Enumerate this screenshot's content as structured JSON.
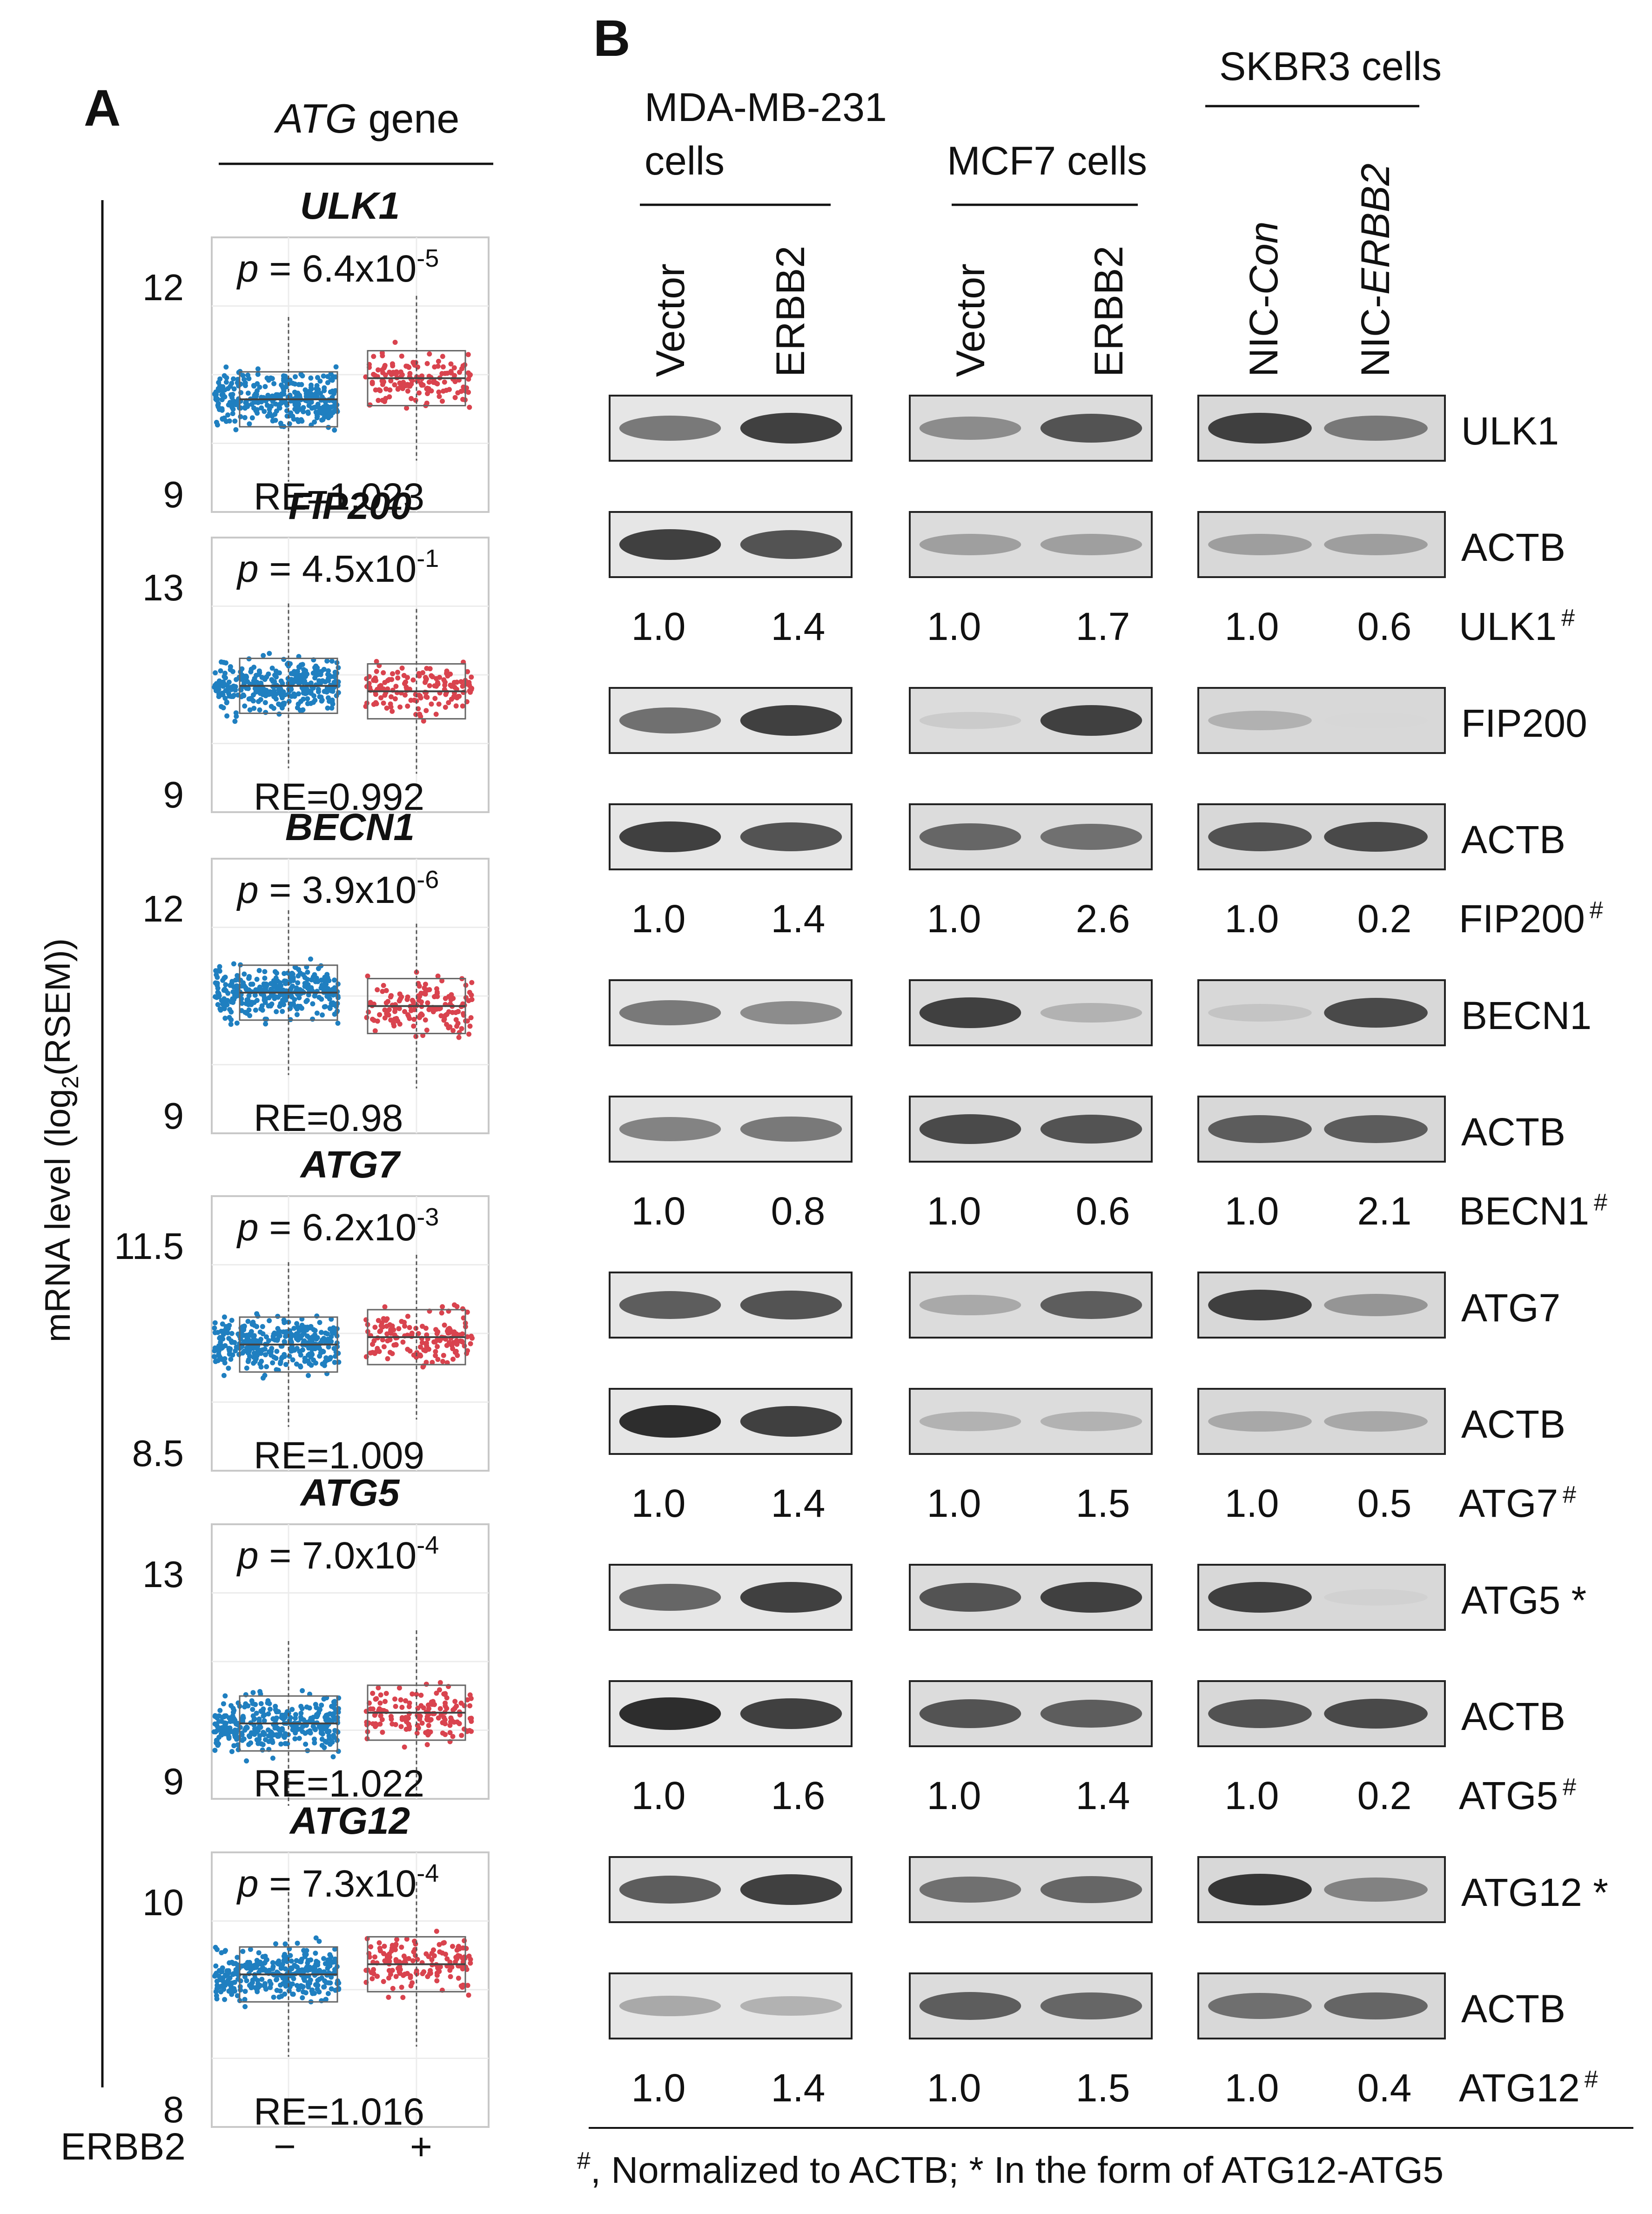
{
  "panels": {
    "a_label": "A",
    "b_label": "B"
  },
  "panel_a": {
    "header_italic": "ATG",
    "header_rest": " gene",
    "y_axis_label_pre": "mRNA level (log",
    "y_axis_label_sub": "2",
    "y_axis_label_post": "(RSEM))",
    "x_label": "ERBB2",
    "x_minus": "−",
    "x_plus": "+",
    "colors": {
      "negative": "#1f7fc0",
      "positive": "#d9434e"
    },
    "plots": [
      {
        "gene": "ULK1",
        "tick_top": "12",
        "tick_bottom": "9",
        "p_pre": "p = 6.4x10",
        "p_exp": "-5",
        "re": "RE=1.023",
        "median_neg": 10.3,
        "median_pos": 10.6,
        "ylim": [
          8.7,
          12.6
        ]
      },
      {
        "gene": "FIP200",
        "tick_top": "13",
        "tick_bottom": "9",
        "p_pre": "p = 4.5x10",
        "p_exp": "-1",
        "re": "RE=0.992",
        "median_neg": 10.9,
        "median_pos": 10.8,
        "ylim": [
          8.6,
          13.6
        ]
      },
      {
        "gene": "BECN1",
        "tick_top": "12",
        "tick_bottom": "9",
        "p_pre": "p = 3.9x10",
        "p_exp": "-6",
        "re": "RE=0.98",
        "median_neg": 10.7,
        "median_pos": 10.5,
        "ylim": [
          8.6,
          12.7
        ]
      },
      {
        "gene": "ATG7",
        "tick_top": "11.5",
        "tick_bottom": "8.5",
        "p_pre": "p = 6.2x10",
        "p_exp": "-3",
        "re": "RE=1.009",
        "median_neg": 9.9,
        "median_pos": 10.0,
        "ylim": [
          8.2,
          11.9
        ]
      },
      {
        "gene": "ATG5",
        "tick_top": "13",
        "tick_bottom": "9",
        "p_pre": "p = 7.0x10",
        "p_exp": "-4",
        "re": "RE=1.022",
        "median_neg": 9.9,
        "median_pos": 10.1,
        "ylim": [
          8.5,
          13.6
        ]
      },
      {
        "gene": "ATG12",
        "tick_top": "10",
        "tick_bottom": "8",
        "p_pre": "p = 7.3x10",
        "p_exp": "-4",
        "re": "RE=1.016",
        "median_neg": 9.3,
        "median_pos": 9.4,
        "ylim": [
          7.8,
          10.5
        ]
      }
    ]
  },
  "panel_b": {
    "groups": [
      {
        "title_line1": "MDA-MB-231",
        "title_line2": "cells",
        "lanes": [
          {
            "label": "Vector",
            "italic": ""
          },
          {
            "label": "ERBB2",
            "italic": ""
          }
        ]
      },
      {
        "title_line1": "MCF7 cells",
        "title_line2": "",
        "lanes": [
          {
            "label": "Vector",
            "italic": ""
          },
          {
            "label": "ERBB2",
            "italic": ""
          }
        ]
      },
      {
        "title_line1": "SKBR3 cells",
        "title_line2": "",
        "lanes": [
          {
            "label": "NIC-",
            "italic": "Con"
          },
          {
            "label": "NIC-",
            "italic": "ERBB2"
          }
        ]
      }
    ],
    "blots": [
      {
        "target": "ULK1",
        "suffix": "",
        "loading": "ACTB",
        "quant_label": "ULK1",
        "quant": [
          [
            "1.0",
            "1.4"
          ],
          [
            "1.0",
            "1.7"
          ],
          [
            "1.0",
            "0.6"
          ]
        ],
        "target_bands": [
          [
            0.55,
            0.85
          ],
          [
            0.45,
            0.75
          ],
          [
            0.85,
            0.55
          ]
        ],
        "actb_bands": [
          [
            0.85,
            0.75
          ],
          [
            0.35,
            0.35
          ],
          [
            0.35,
            0.35
          ]
        ]
      },
      {
        "target": "FIP200",
        "suffix": "",
        "loading": "ACTB",
        "quant_label": "FIP200",
        "quant": [
          [
            "1.0",
            "1.4"
          ],
          [
            "1.0",
            "2.6"
          ],
          [
            "1.0",
            "0.2"
          ]
        ],
        "target_bands": [
          [
            0.6,
            0.85
          ],
          [
            0.12,
            0.85
          ],
          [
            0.25,
            0.05
          ]
        ],
        "actb_bands": [
          [
            0.85,
            0.75
          ],
          [
            0.65,
            0.6
          ],
          [
            0.75,
            0.8
          ]
        ]
      },
      {
        "target": "BECN1",
        "suffix": "",
        "loading": "ACTB",
        "quant_label": "BECN1",
        "quant": [
          [
            "1.0",
            "0.8"
          ],
          [
            "1.0",
            "0.6"
          ],
          [
            "1.0",
            "2.1"
          ]
        ],
        "target_bands": [
          [
            0.55,
            0.45
          ],
          [
            0.85,
            0.25
          ],
          [
            0.15,
            0.8
          ]
        ],
        "actb_bands": [
          [
            0.5,
            0.55
          ],
          [
            0.8,
            0.75
          ],
          [
            0.7,
            0.7
          ]
        ]
      },
      {
        "target": "ATG7",
        "suffix": "",
        "loading": "ACTB",
        "quant_label": "ATG7",
        "quant": [
          [
            "1.0",
            "1.4"
          ],
          [
            "1.0",
            "1.5"
          ],
          [
            "1.0",
            "0.5"
          ]
        ],
        "target_bands": [
          [
            0.7,
            0.75
          ],
          [
            0.3,
            0.7
          ],
          [
            0.85,
            0.4
          ]
        ],
        "actb_bands": [
          [
            0.95,
            0.85
          ],
          [
            0.25,
            0.25
          ],
          [
            0.3,
            0.3
          ]
        ]
      },
      {
        "target": "ATG5",
        "suffix": " *",
        "loading": "ACTB",
        "quant_label": "ATG5",
        "quant": [
          [
            "1.0",
            "1.6"
          ],
          [
            "1.0",
            "1.4"
          ],
          [
            "1.0",
            "0.2"
          ]
        ],
        "target_bands": [
          [
            0.65,
            0.85
          ],
          [
            0.75,
            0.85
          ],
          [
            0.85,
            0.08
          ]
        ],
        "actb_bands": [
          [
            0.95,
            0.85
          ],
          [
            0.75,
            0.7
          ],
          [
            0.75,
            0.8
          ]
        ]
      },
      {
        "target": "ATG12",
        "suffix": " *",
        "loading": "ACTB",
        "quant_label": "ATG12",
        "quant": [
          [
            "1.0",
            "1.4"
          ],
          [
            "1.0",
            "1.5"
          ],
          [
            "1.0",
            "0.4"
          ]
        ],
        "target_bands": [
          [
            0.7,
            0.85
          ],
          [
            0.6,
            0.65
          ],
          [
            0.9,
            0.5
          ]
        ],
        "actb_bands": [
          [
            0.3,
            0.25
          ],
          [
            0.7,
            0.65
          ],
          [
            0.6,
            0.65
          ]
        ]
      }
    ],
    "hash": "#",
    "footnote_pre": "#",
    "footnote_text": ", Normalized to ACTB; * In the form of ATG12-ATG5"
  }
}
